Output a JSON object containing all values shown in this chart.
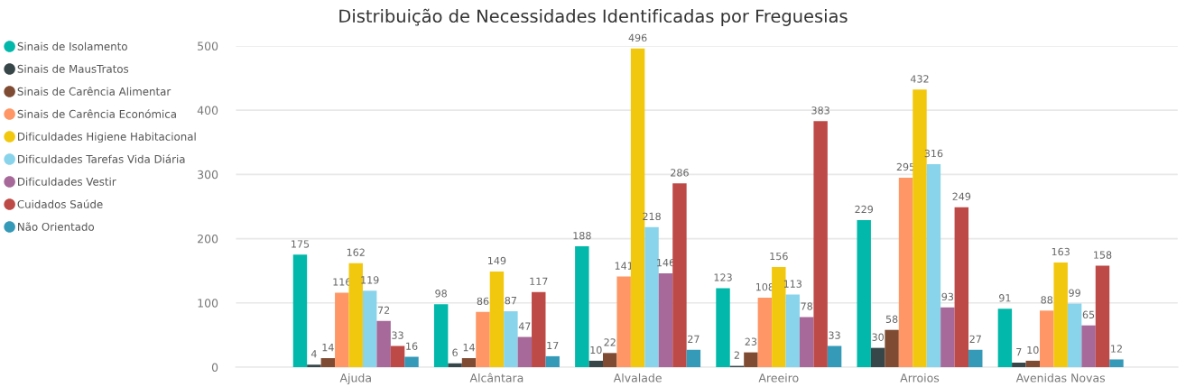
{
  "chart_data": {
    "type": "bar",
    "title": "Distribuição de Necessidades Identificadas por Freguesias",
    "categories": [
      "Ajuda",
      "Alcântara",
      "Alvalade",
      "Areeiro",
      "Arroios",
      "Avenidas Novas"
    ],
    "series": [
      {
        "name": "Sinais de Isolamento",
        "color": "#01b8aa",
        "values": [
          175,
          98,
          188,
          123,
          229,
          91
        ]
      },
      {
        "name": "Sinais de MausTratos",
        "color": "#374649",
        "values": [
          4,
          6,
          10,
          2,
          30,
          7
        ]
      },
      {
        "name": "Sinais de Carência Alimentar",
        "color": "#7f4b33",
        "values": [
          14,
          14,
          22,
          23,
          58,
          10
        ]
      },
      {
        "name": "Sinais de Carência Económica",
        "color": "#fe9666",
        "values": [
          116,
          86,
          141,
          108,
          295,
          88
        ]
      },
      {
        "name": "Dificuldades Higiene Habitacional",
        "color": "#f2c80f",
        "values": [
          162,
          149,
          496,
          156,
          432,
          163
        ]
      },
      {
        "name": "Dificuldades Tarefas Vida Diária",
        "color": "#8ad4eb",
        "values": [
          119,
          87,
          218,
          113,
          316,
          99
        ]
      },
      {
        "name": "Dificuldades Vestir",
        "color": "#a66999",
        "values": [
          72,
          47,
          146,
          78,
          93,
          65
        ]
      },
      {
        "name": "Cuidados Saúde",
        "color": "#be4a47",
        "values": [
          33,
          117,
          286,
          383,
          249,
          158
        ]
      },
      {
        "name": "Não Orientado",
        "color": "#3599b8",
        "values": [
          16,
          17,
          27,
          33,
          27,
          12
        ]
      }
    ],
    "ylim": [
      0,
      500
    ],
    "yticks": [
      0,
      100,
      200,
      300,
      400,
      500
    ],
    "grid": "y",
    "legend": "left",
    "data_labels": true
  }
}
